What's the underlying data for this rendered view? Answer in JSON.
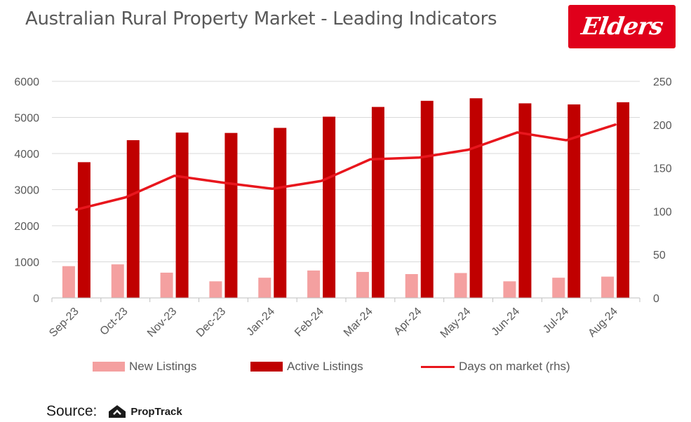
{
  "header": {
    "title": "Australian Rural Property Market - Leading Indicators",
    "logo_text": "Elders"
  },
  "colors": {
    "new_listings": "#f4a0a0",
    "active_listings": "#c00000",
    "days_on_market": "#e8161d",
    "logo_bg": "#e0001b"
  },
  "chart_data": {
    "type": "bar",
    "title": "Australian Rural Property Market - Leading Indicators",
    "categories": [
      "Sep-23",
      "Oct-23",
      "Nov-23",
      "Dec-23",
      "Jan-24",
      "Feb-24",
      "Mar-24",
      "Apr-24",
      "May-24",
      "Jun-24",
      "Jul-24",
      "Aug-24"
    ],
    "series": [
      {
        "name": "New Listings",
        "type": "bar",
        "axis": "left",
        "color": "#f4a0a0",
        "values": [
          880,
          930,
          700,
          460,
          560,
          760,
          720,
          660,
          690,
          460,
          560,
          590
        ]
      },
      {
        "name": "Active Listings",
        "type": "bar",
        "axis": "left",
        "color": "#c00000",
        "values": [
          3760,
          4370,
          4580,
          4570,
          4710,
          5020,
          5290,
          5460,
          5530,
          5390,
          5360,
          5420
        ]
      },
      {
        "name": "Days on market  (rhs)",
        "type": "line",
        "axis": "right",
        "color": "#e8161d",
        "values": [
          102,
          116,
          141,
          133,
          126,
          135,
          160,
          162,
          171,
          191,
          182,
          200
        ]
      }
    ],
    "ylim_left": [
      0,
      6000
    ],
    "ylim_right": [
      0,
      250
    ],
    "yticks_left": [
      "0",
      "1000",
      "2000",
      "3000",
      "4000",
      "5000",
      "6000"
    ],
    "yticks_right": [
      "0",
      "50",
      "100",
      "150",
      "200",
      "250"
    ],
    "grid": true,
    "legend_position": "bottom"
  },
  "legend": {
    "new_listings": "New Listings",
    "active_listings": "Active Listings",
    "days_on_market": "Days on market  (rhs)"
  },
  "footer": {
    "source_label": "Source:",
    "source_name": "PropTrack"
  }
}
